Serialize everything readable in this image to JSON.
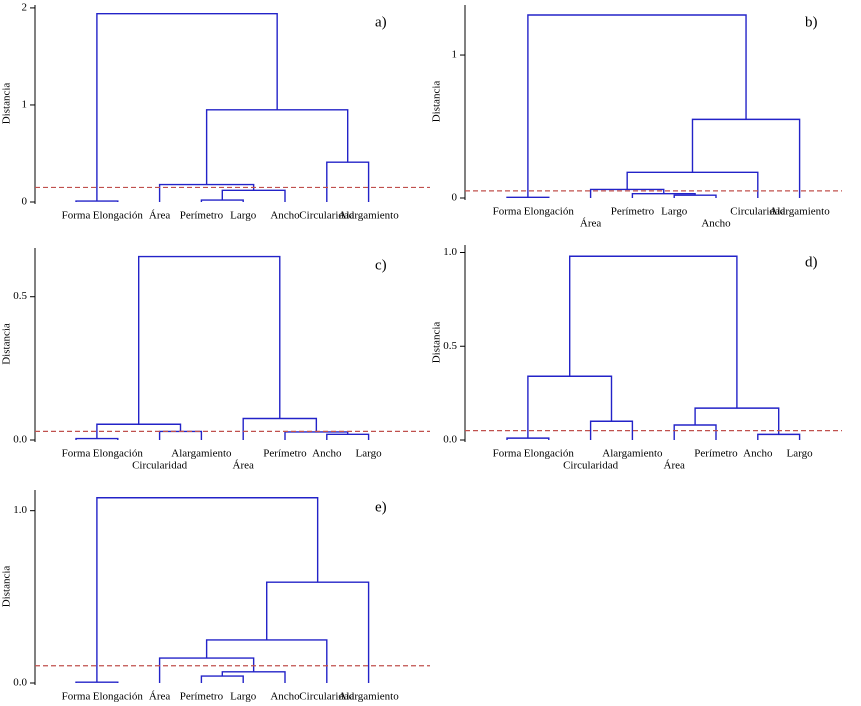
{
  "chart_data": [
    {
      "type": "dendrogram",
      "title": "a)",
      "y_label": "Distancia",
      "categories": [
        "Forma",
        "Elongación",
        "Área",
        "Perímetro",
        "Largo",
        "Ancho",
        "Circularidad",
        "Alargamiento"
      ],
      "merges": [
        {
          "join": [
            0,
            1
          ],
          "height": 0.01
        },
        {
          "join": [
            3,
            4
          ],
          "height": 0.02
        },
        {
          "join": [
            9,
            5
          ],
          "height": 0.12
        },
        {
          "join": [
            2,
            10
          ],
          "height": 0.18
        },
        {
          "join": [
            6,
            7
          ],
          "height": 0.41
        },
        {
          "join": [
            11,
            12
          ],
          "height": 0.95
        },
        {
          "join": [
            8,
            13
          ],
          "height": 1.94
        }
      ],
      "threshold": 0.15,
      "color": "#2323c8",
      "threshold_color": "#c0504d",
      "ylim": [
        0,
        2.03
      ],
      "yticks": [
        0,
        1,
        2
      ]
    },
    {
      "type": "dendrogram",
      "title": "b)",
      "y_label": "Distancia",
      "categories": [
        "Forma",
        "Elongación",
        "Área",
        "Perímetro",
        "Largo",
        "Ancho",
        "Circularidad",
        "Alargamiento"
      ],
      "merges": [
        {
          "join": [
            0,
            1
          ],
          "height": 0.005
        },
        {
          "join": [
            4,
            5
          ],
          "height": 0.02
        },
        {
          "join": [
            3,
            9
          ],
          "height": 0.03
        },
        {
          "join": [
            2,
            10
          ],
          "height": 0.06
        },
        {
          "join": [
            11,
            6
          ],
          "height": 0.18
        },
        {
          "join": [
            12,
            7
          ],
          "height": 0.55
        },
        {
          "join": [
            8,
            13
          ],
          "height": 1.28
        }
      ],
      "threshold": 0.05,
      "color": "#2323c8",
      "threshold_color": "#c0504d",
      "ylim": [
        0,
        1.35
      ],
      "yticks": [
        0,
        1
      ]
    },
    {
      "type": "dendrogram",
      "title": "c)",
      "y_label": "Distancia",
      "categories": [
        "Forma",
        "Elongación",
        "Circularidad",
        "Alargamiento",
        "Área",
        "Perímetro",
        "Ancho",
        "Largo"
      ],
      "merges": [
        {
          "join": [
            0,
            1
          ],
          "height": 0.005
        },
        {
          "join": [
            2,
            3
          ],
          "height": 0.03
        },
        {
          "join": [
            8,
            9
          ],
          "height": 0.055
        },
        {
          "join": [
            6,
            7
          ],
          "height": 0.02
        },
        {
          "join": [
            5,
            11
          ],
          "height": 0.028
        },
        {
          "join": [
            4,
            12
          ],
          "height": 0.075
        },
        {
          "join": [
            10,
            13
          ],
          "height": 0.64
        }
      ],
      "threshold": 0.03,
      "color": "#2323c8",
      "threshold_color": "#c0504d",
      "ylim": [
        0,
        0.67
      ],
      "yticks": [
        {
          "value": 0,
          "label": "0.0"
        },
        0.5
      ]
    },
    {
      "type": "dendrogram",
      "title": "d)",
      "y_label": "Distancia",
      "categories": [
        "Forma",
        "Elongación",
        "Circularidad",
        "Alargamiento",
        "Área",
        "Perímetro",
        "Ancho",
        "Largo"
      ],
      "merges": [
        {
          "join": [
            0,
            1
          ],
          "height": 0.01
        },
        {
          "join": [
            2,
            3
          ],
          "height": 0.1
        },
        {
          "join": [
            8,
            9
          ],
          "height": 0.34
        },
        {
          "join": [
            4,
            5
          ],
          "height": 0.08
        },
        {
          "join": [
            6,
            7
          ],
          "height": 0.03
        },
        {
          "join": [
            11,
            12
          ],
          "height": 0.17
        },
        {
          "join": [
            10,
            13
          ],
          "height": 0.98
        }
      ],
      "threshold": 0.05,
      "color": "#2323c8",
      "threshold_color": "#c0504d",
      "ylim": [
        0,
        1.04
      ],
      "yticks": [
        {
          "value": 0,
          "label": "0.0"
        },
        0.5,
        {
          "value": 1,
          "label": "1.0"
        }
      ]
    },
    {
      "type": "dendrogram",
      "title": "e)",
      "y_label": "Distancia",
      "categories": [
        "Forma",
        "Elongación",
        "Área",
        "Perímetro",
        "Largo",
        "Ancho",
        "Circularidad",
        "Alargamiento"
      ],
      "merges": [
        {
          "join": [
            0,
            1
          ],
          "height": 0.005
        },
        {
          "join": [
            3,
            4
          ],
          "height": 0.04
        },
        {
          "join": [
            9,
            5
          ],
          "height": 0.065
        },
        {
          "join": [
            2,
            10
          ],
          "height": 0.145
        },
        {
          "join": [
            11,
            6
          ],
          "height": 0.25
        },
        {
          "join": [
            12,
            7
          ],
          "height": 0.585
        },
        {
          "join": [
            8,
            13
          ],
          "height": 1.075
        }
      ],
      "threshold": 0.1,
      "color": "#2323c8",
      "threshold_color": "#c0504d",
      "ylim": [
        0,
        1.12
      ],
      "yticks": [
        {
          "value": 0,
          "label": "0.0"
        },
        {
          "value": 1,
          "label": "1.0"
        }
      ]
    }
  ]
}
